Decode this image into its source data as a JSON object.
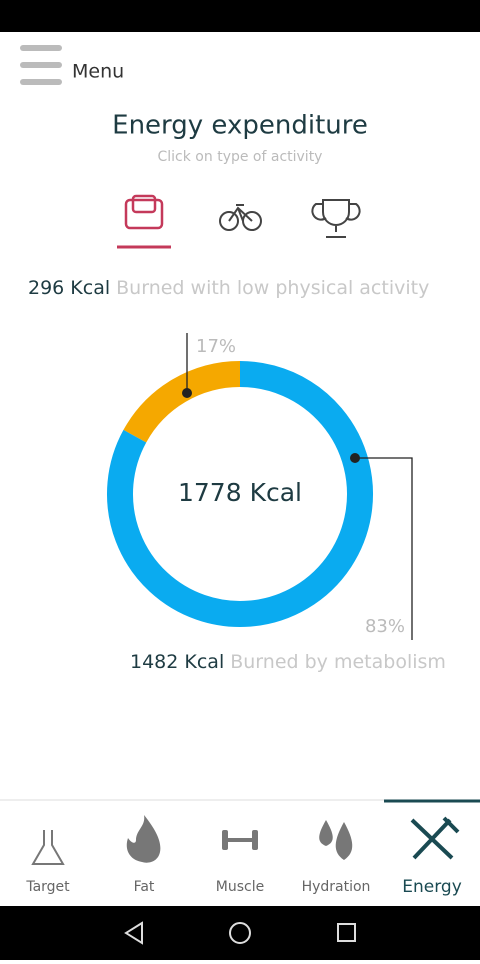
{
  "header": {
    "menu": "Menu"
  },
  "title": "Energy expenditure",
  "subtitle": "Click on type of activity",
  "low_activity": {
    "amount": "296 Kcal",
    "text": "Burned with low physical activity"
  },
  "metabolism": {
    "amount": "1482 Kcal",
    "text": "Burned by metabolism"
  },
  "chart_data": {
    "type": "pie",
    "values": [
      17,
      83
    ],
    "value_labels": [
      "17%",
      "83%"
    ],
    "colors": [
      "#f5a800",
      "#0aabf0"
    ],
    "center_label": "1778 Kcal"
  },
  "nav": [
    "Target",
    "Fat",
    "Muscle",
    "Hydration",
    "Energy"
  ]
}
